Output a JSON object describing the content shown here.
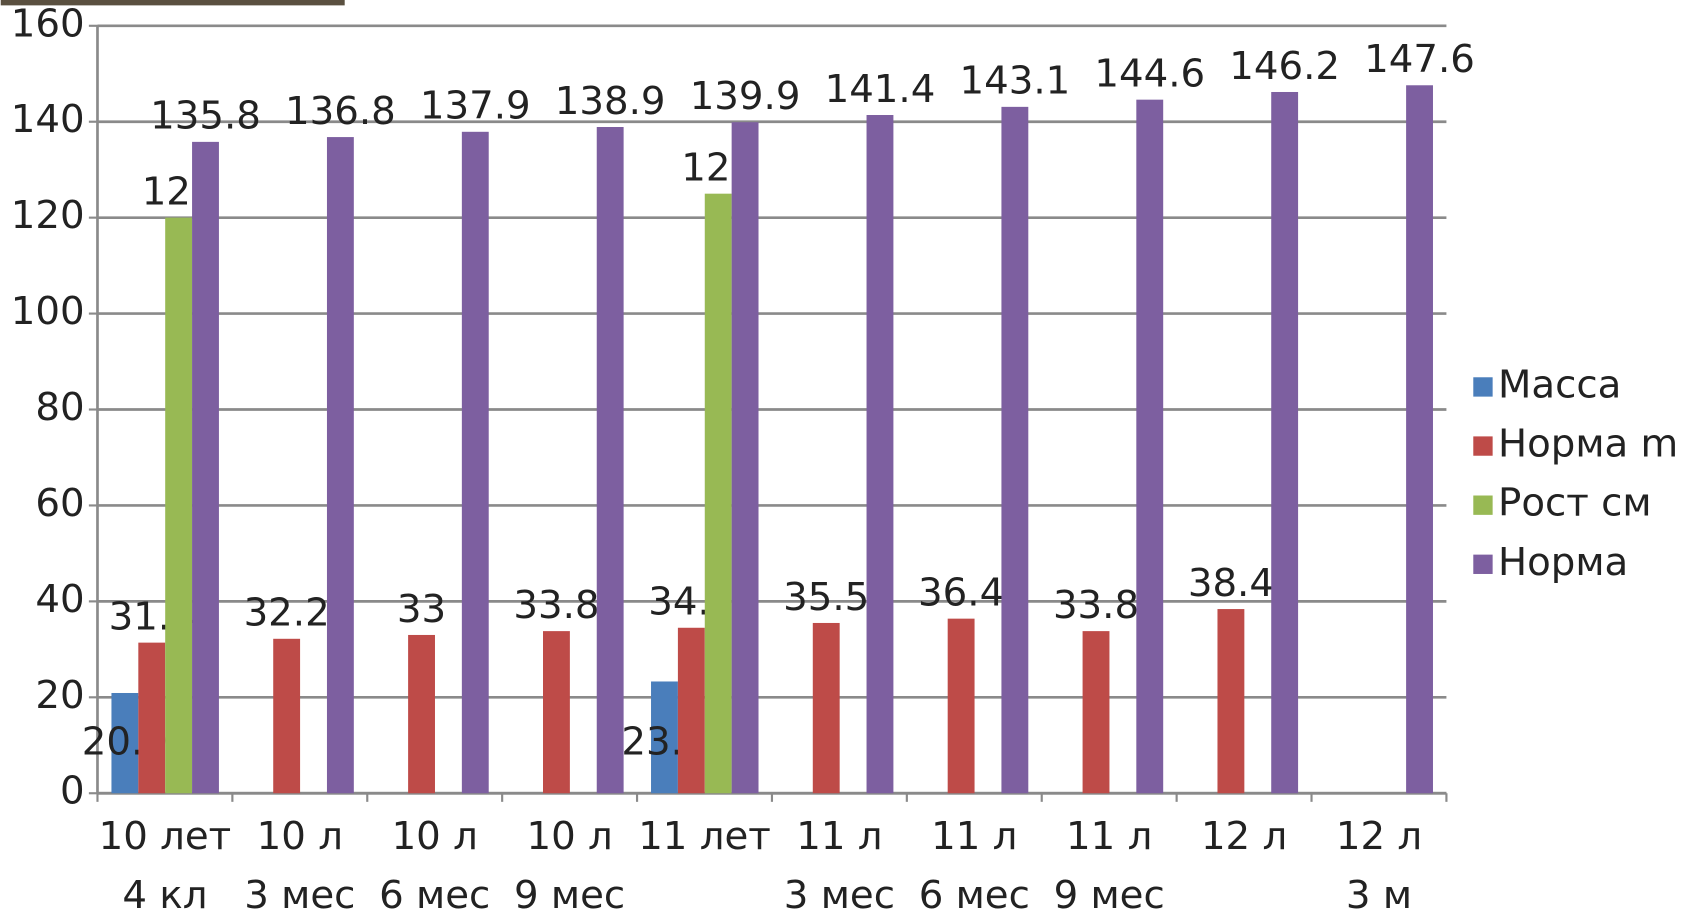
{
  "chart_data": {
    "type": "bar",
    "categories": [
      [
        "10 лет",
        "4 кл"
      ],
      [
        "10 л",
        "3 мес"
      ],
      [
        "10 л",
        "6 мес"
      ],
      [
        "10 л",
        "9 мес"
      ],
      [
        "11 лет"
      ],
      [
        "11 л",
        "3 мес"
      ],
      [
        "11 л",
        "6 мес"
      ],
      [
        "11 л",
        "9 мес"
      ],
      [
        "12 л"
      ],
      [
        "12 л",
        "3 м"
      ]
    ],
    "series": [
      {
        "name": "Масса",
        "color": "#4a7ebb",
        "values": [
          20.9,
          null,
          null,
          null,
          23.3,
          null,
          null,
          null,
          null,
          null
        ]
      },
      {
        "name": "Норма m",
        "color": "#be4b48",
        "values": [
          31.4,
          32.2,
          33,
          33.8,
          34.5,
          35.5,
          36.4,
          33.8,
          38.4,
          null
        ]
      },
      {
        "name": "Рост см",
        "color": "#98b954",
        "values": [
          120,
          null,
          null,
          null,
          125,
          null,
          null,
          null,
          null,
          null
        ]
      },
      {
        "name": "Норма",
        "color": "#7d5fa0",
        "values": [
          135.8,
          136.8,
          137.9,
          138.9,
          139.9,
          141.4,
          143.1,
          144.6,
          146.2,
          147.6
        ]
      }
    ],
    "ylim": [
      0,
      160
    ],
    "yticks": [
      0,
      20,
      40,
      60,
      80,
      100,
      120,
      140,
      160
    ],
    "grid": true,
    "legend": "right"
  }
}
